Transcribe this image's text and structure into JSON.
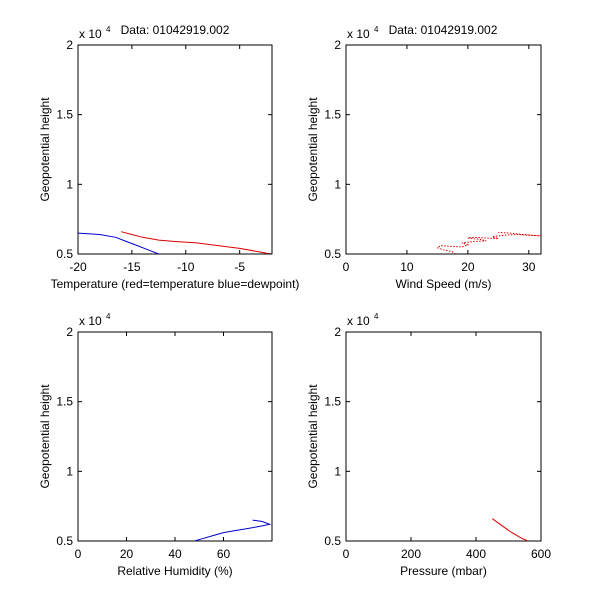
{
  "figure": {
    "background": "#ffffff"
  },
  "colors": {
    "temperature": "#dd0000",
    "dewpoint": "#0000cc",
    "wind": "#dd0000",
    "humidity": "#0000cc",
    "pressure": "#dd0000"
  },
  "chart_data": [
    {
      "type": "line",
      "title": "Data: 01042919.002",
      "xlabel": "Temperature (red=temperature blue=dewpoint)",
      "ylabel": "Geopotential height",
      "exponent_label": "x 10",
      "exponent_power": "4",
      "xlim": [
        -20,
        -2
      ],
      "ylim": [
        5000,
        20000
      ],
      "xticks": [
        -20,
        -15,
        -10,
        -5
      ],
      "xtick_labels": [
        "-20",
        "-15",
        "-10",
        "-5"
      ],
      "yticks": [
        5000,
        10000,
        15000,
        20000
      ],
      "ytick_labels": [
        "0.5",
        "1",
        "1.5",
        "2"
      ],
      "series": [
        {
          "name": "temperature",
          "color": "#dd0000",
          "style": "solid",
          "x": [
            -16,
            -15,
            -14,
            -12.5,
            -11,
            -9,
            -7,
            -5,
            -3.5,
            -2.5,
            -2
          ],
          "y": [
            6600,
            6400,
            6200,
            6000,
            5900,
            5800,
            5600,
            5400,
            5200,
            5050,
            5000
          ]
        },
        {
          "name": "dewpoint",
          "color": "#0000cc",
          "style": "solid",
          "x": [
            -20,
            -18,
            -16.5,
            -15.5,
            -14.5,
            -13.5,
            -12.5
          ],
          "y": [
            6500,
            6400,
            6200,
            5900,
            5600,
            5300,
            5000
          ]
        }
      ]
    },
    {
      "type": "line",
      "title": "Data: 01042919.002",
      "xlabel": "Wind Speed (m/s)",
      "ylabel": "Geopotential height",
      "exponent_label": "x 10",
      "exponent_power": "4",
      "xlim": [
        0,
        32
      ],
      "ylim": [
        5000,
        20000
      ],
      "xticks": [
        0,
        10,
        20,
        30
      ],
      "xtick_labels": [
        "0",
        "10",
        "20",
        "30"
      ],
      "yticks": [
        5000,
        10000,
        15000,
        20000
      ],
      "ytick_labels": [
        "0.5",
        "1",
        "1.5",
        "2"
      ],
      "series": [
        {
          "name": "wind speed",
          "color": "#dd0000",
          "style": "dotted",
          "x": [
            18,
            17.5,
            16,
            15,
            15.5,
            17,
            19,
            20,
            19,
            21,
            23,
            22,
            20,
            21,
            23,
            25,
            24,
            26,
            28,
            30,
            32,
            29,
            27,
            25
          ],
          "y": [
            5000,
            5150,
            5300,
            5450,
            5600,
            5550,
            5500,
            5650,
            5800,
            5900,
            5950,
            6050,
            6150,
            6200,
            6150,
            6100,
            6250,
            6350,
            6400,
            6350,
            6300,
            6400,
            6500,
            6550
          ]
        }
      ]
    },
    {
      "type": "line",
      "title": "",
      "xlabel": "Relative Humidity (%)",
      "ylabel": "Geopotential height",
      "exponent_label": "x 10",
      "exponent_power": "4",
      "xlim": [
        0,
        80
      ],
      "ylim": [
        5000,
        20000
      ],
      "xticks": [
        0,
        20,
        40,
        60
      ],
      "xtick_labels": [
        "0",
        "20",
        "40",
        "60"
      ],
      "yticks": [
        5000,
        10000,
        15000,
        20000
      ],
      "ytick_labels": [
        "0.5",
        "1",
        "1.5",
        "2"
      ],
      "series": [
        {
          "name": "relative humidity",
          "color": "#0000cc",
          "style": "solid",
          "x": [
            48,
            52,
            56,
            60,
            65,
            70,
            75,
            79,
            76,
            72
          ],
          "y": [
            5000,
            5200,
            5400,
            5600,
            5750,
            5900,
            6050,
            6200,
            6400,
            6500
          ]
        }
      ]
    },
    {
      "type": "line",
      "title": "",
      "xlabel": "Pressure (mbar)",
      "ylabel": "Geopotential height",
      "exponent_label": "x 10",
      "exponent_power": "4",
      "xlim": [
        0,
        600
      ],
      "ylim": [
        5000,
        20000
      ],
      "xticks": [
        0,
        200,
        400,
        600
      ],
      "xtick_labels": [
        "0",
        "200",
        "400",
        "600"
      ],
      "yticks": [
        5000,
        10000,
        15000,
        20000
      ],
      "ytick_labels": [
        "0.5",
        "1",
        "1.5",
        "2"
      ],
      "series": [
        {
          "name": "pressure",
          "color": "#dd0000",
          "style": "solid",
          "x": [
            450,
            480,
            510,
            540,
            560
          ],
          "y": [
            6600,
            6100,
            5600,
            5200,
            5000
          ]
        }
      ]
    }
  ]
}
